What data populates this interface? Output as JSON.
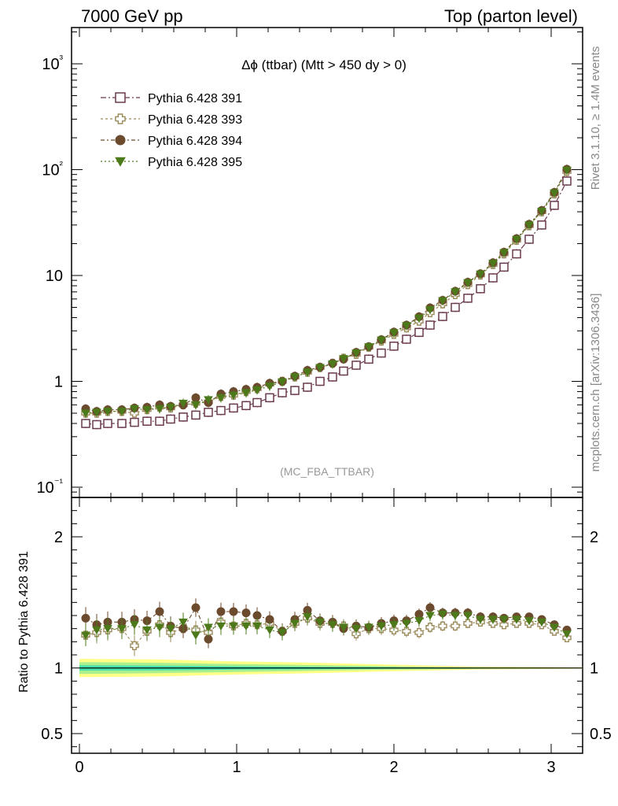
{
  "header": {
    "left": "7000 GeV pp",
    "right": "Top (parton level)"
  },
  "side": {
    "rivet": "Rivet 3.1.10, ≥ 1.4M events",
    "ref": "mcplots.cern.ch [arXiv:1306.3436]"
  },
  "plot": {
    "title": "Δϕ (ttbar) (Mtt > 450 dy > 0)",
    "watermark": "(MC_FBA_TTBAR)",
    "ratio_ylabel": "Ratio to Pythia 6.428 391"
  },
  "chart_data": [
    {
      "type": "scatter",
      "title": "Δϕ (ttbar) (Mtt > 450 dy > 0)",
      "xlabel": "",
      "ylabel": "",
      "xlim": [
        -0.05,
        3.2
      ],
      "ylim": [
        0.08,
        2200
      ],
      "yscale": "log",
      "x_ticks": [
        "0",
        "1",
        "2",
        "3"
      ],
      "y_ticks": [
        "10⁻¹",
        "1",
        "10",
        "10²",
        "10³"
      ],
      "legend_position": "top-left",
      "x": [
        0.04,
        0.11,
        0.18,
        0.27,
        0.35,
        0.43,
        0.51,
        0.58,
        0.66,
        0.74,
        0.82,
        0.9,
        0.98,
        1.06,
        1.13,
        1.21,
        1.29,
        1.37,
        1.45,
        1.53,
        1.61,
        1.68,
        1.76,
        1.84,
        1.92,
        2.0,
        2.08,
        2.16,
        2.23,
        2.31,
        2.39,
        2.47,
        2.55,
        2.63,
        2.7,
        2.78,
        2.86,
        2.94,
        3.02,
        3.1
      ],
      "series": [
        {
          "name": "Pythia 6.428 391",
          "color": "#6b3a4f",
          "marker": "open-square",
          "values": [
            0.4,
            0.39,
            0.4,
            0.4,
            0.41,
            0.42,
            0.42,
            0.44,
            0.46,
            0.48,
            0.51,
            0.53,
            0.56,
            0.59,
            0.63,
            0.7,
            0.78,
            0.82,
            0.88,
            1.0,
            1.1,
            1.25,
            1.42,
            1.62,
            1.85,
            2.15,
            2.5,
            2.9,
            3.4,
            4.1,
            5.0,
            6.1,
            7.5,
            9.5,
            12.0,
            16.0,
            22.0,
            30.0,
            46.0,
            78.0
          ]
        },
        {
          "name": "Pythia 6.428 393",
          "color": "#9b8a5a",
          "marker": "open-cross",
          "values": [
            0.5,
            0.5,
            0.52,
            0.52,
            0.5,
            0.54,
            0.57,
            0.56,
            0.6,
            0.62,
            0.64,
            0.72,
            0.74,
            0.8,
            0.85,
            0.94,
            1.0,
            1.1,
            1.22,
            1.35,
            1.48,
            1.65,
            1.8,
            2.1,
            2.4,
            2.78,
            3.2,
            3.7,
            4.45,
            5.4,
            6.6,
            8.2,
            10.1,
            12.7,
            16.0,
            21.5,
            29.5,
            40.0,
            59.0,
            96.0
          ]
        },
        {
          "name": "Pythia 6.428 394",
          "color": "#6b4a2e",
          "marker": "filled-circle",
          "values": [
            0.55,
            0.52,
            0.54,
            0.54,
            0.56,
            0.57,
            0.6,
            0.58,
            0.6,
            0.7,
            0.63,
            0.76,
            0.8,
            0.84,
            0.88,
            0.96,
            1.0,
            1.12,
            1.27,
            1.36,
            1.48,
            1.62,
            1.88,
            2.13,
            2.48,
            2.92,
            3.4,
            4.08,
            4.95,
            5.83,
            7.1,
            8.65,
            10.4,
            13.2,
            16.6,
            22.3,
            30.5,
            41.2,
            61.0,
            101.0
          ]
        },
        {
          "name": "Pythia 6.428 395",
          "color": "#4c7a1a",
          "marker": "filled-triangle-down",
          "values": [
            0.5,
            0.51,
            0.52,
            0.52,
            0.55,
            0.54,
            0.55,
            0.57,
            0.62,
            0.6,
            0.67,
            0.7,
            0.74,
            0.78,
            0.83,
            0.9,
            0.99,
            1.1,
            1.22,
            1.35,
            1.46,
            1.64,
            1.85,
            2.12,
            2.45,
            2.87,
            3.36,
            3.95,
            4.75,
            5.77,
            7.0,
            8.53,
            10.3,
            13.0,
            16.4,
            21.9,
            30.0,
            40.4,
            60.1,
            98.5
          ]
        }
      ]
    },
    {
      "type": "scatter",
      "title": "",
      "xlabel": "",
      "ylabel": "Ratio to Pythia 6.428 391",
      "xlim": [
        -0.05,
        3.2
      ],
      "ylim": [
        0.35,
        2.3
      ],
      "x_ticks": [
        "0",
        "1",
        "2",
        "3"
      ],
      "y_ticks": [
        "0.5",
        "1",
        "2"
      ],
      "reference_line": 1,
      "uncertainty_bands": [
        {
          "color": "#ffff88",
          "x": [
            0.0,
            0.5,
            1.0,
            1.5,
            2.0,
            2.5,
            3.2
          ],
          "half_width": [
            0.07,
            0.065,
            0.05,
            0.04,
            0.025,
            0.012,
            0.005
          ]
        },
        {
          "color": "#aaf08f",
          "x": [
            0.0,
            0.5,
            1.0,
            1.5,
            2.0,
            2.5,
            3.2
          ],
          "half_width": [
            0.045,
            0.04,
            0.03,
            0.022,
            0.013,
            0.006,
            0.002
          ]
        },
        {
          "color": "#44dfaa",
          "x": [
            0.0,
            0.5,
            1.0,
            1.5,
            2.0,
            2.5,
            3.2
          ],
          "half_width": [
            0.02,
            0.018,
            0.013,
            0.009,
            0.005,
            0.003,
            0.001
          ]
        }
      ],
      "x": [
        0.04,
        0.11,
        0.18,
        0.27,
        0.35,
        0.43,
        0.51,
        0.58,
        0.66,
        0.74,
        0.82,
        0.9,
        0.98,
        1.06,
        1.13,
        1.21,
        1.29,
        1.37,
        1.45,
        1.53,
        1.61,
        1.68,
        1.76,
        1.84,
        1.92,
        2.0,
        2.08,
        2.16,
        2.23,
        2.31,
        2.39,
        2.47,
        2.55,
        2.63,
        2.7,
        2.78,
        2.86,
        2.94,
        3.02,
        3.1
      ],
      "series": [
        {
          "name": "Pythia 6.428 393",
          "color": "#9b8a5a",
          "marker": "open-cross",
          "values": [
            1.25,
            1.27,
            1.29,
            1.3,
            1.17,
            1.28,
            1.33,
            1.27,
            1.3,
            1.29,
            1.27,
            1.35,
            1.32,
            1.34,
            1.33,
            1.34,
            1.28,
            1.34,
            1.38,
            1.34,
            1.34,
            1.32,
            1.26,
            1.3,
            1.3,
            1.29,
            1.28,
            1.27,
            1.31,
            1.32,
            1.32,
            1.34,
            1.35,
            1.34,
            1.33,
            1.34,
            1.34,
            1.33,
            1.28,
            1.23
          ]
        },
        {
          "name": "Pythia 6.428 394",
          "color": "#6b4a2e",
          "marker": "filled-circle",
          "values": [
            1.38,
            1.33,
            1.35,
            1.35,
            1.37,
            1.36,
            1.43,
            1.32,
            1.3,
            1.46,
            1.22,
            1.43,
            1.43,
            1.42,
            1.4,
            1.37,
            1.28,
            1.37,
            1.44,
            1.36,
            1.35,
            1.3,
            1.32,
            1.31,
            1.34,
            1.36,
            1.36,
            1.41,
            1.46,
            1.42,
            1.42,
            1.42,
            1.39,
            1.39,
            1.38,
            1.39,
            1.39,
            1.37,
            1.33,
            1.29
          ]
        },
        {
          "name": "Pythia 6.428 395",
          "color": "#4c7a1a",
          "marker": "filled-triangle-down",
          "values": [
            1.25,
            1.29,
            1.3,
            1.3,
            1.33,
            1.29,
            1.31,
            1.3,
            1.35,
            1.25,
            1.31,
            1.32,
            1.32,
            1.32,
            1.32,
            1.29,
            1.27,
            1.34,
            1.39,
            1.35,
            1.33,
            1.31,
            1.3,
            1.31,
            1.32,
            1.33,
            1.34,
            1.36,
            1.4,
            1.41,
            1.4,
            1.4,
            1.37,
            1.37,
            1.37,
            1.37,
            1.36,
            1.35,
            1.31,
            1.26
          ]
        }
      ]
    }
  ]
}
